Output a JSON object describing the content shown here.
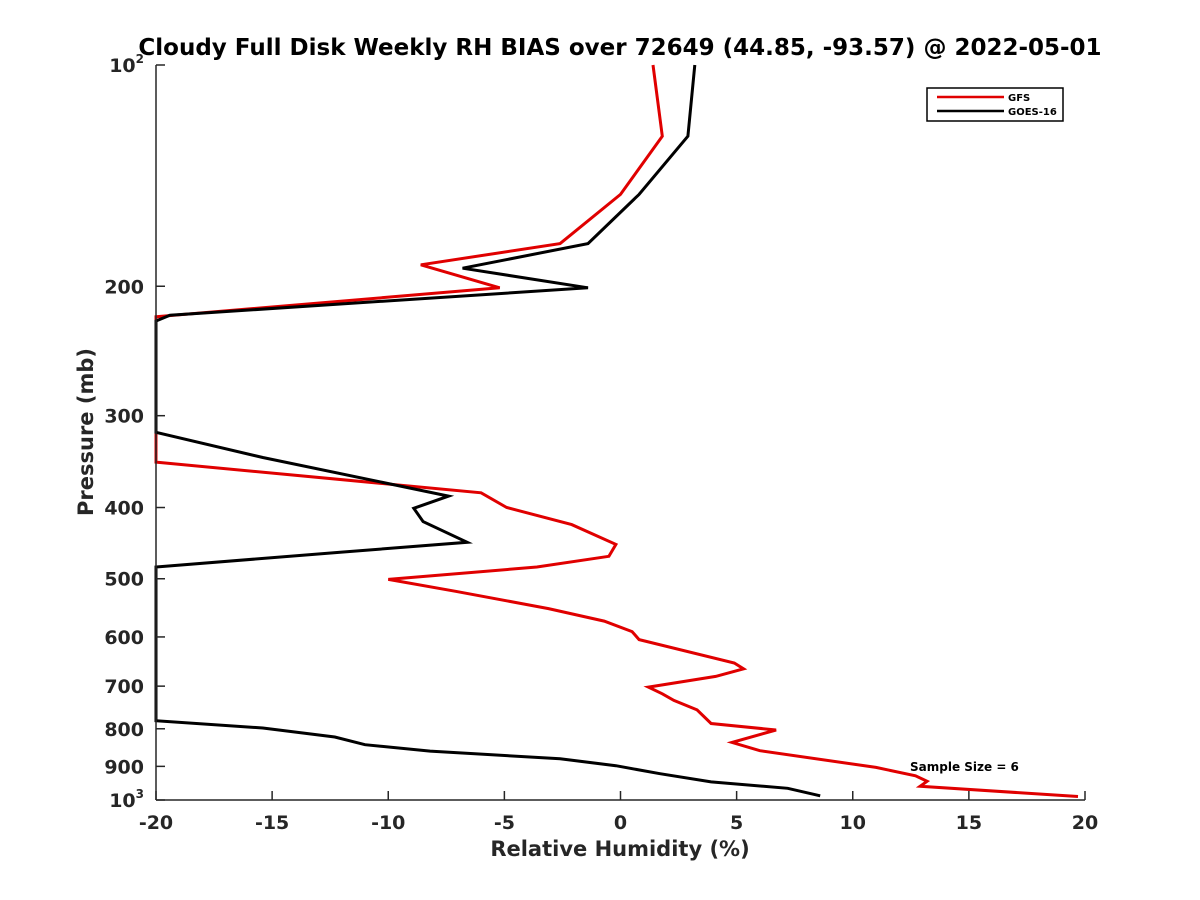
{
  "chart_data": {
    "type": "line",
    "title": "Cloudy Full Disk Weekly RH BIAS over 72649 (44.85, -93.57) @ 2022-05-01",
    "xlabel": "Relative Humidity (%)",
    "ylabel": "Pressure (mb)",
    "xlim": [
      -20,
      20
    ],
    "ylim": [
      100,
      1000
    ],
    "y_scale": "log",
    "y_reversed": true,
    "x_ticks": [
      -20,
      -15,
      -10,
      -5,
      0,
      5,
      10,
      15,
      20
    ],
    "x_tick_labels": [
      "-20",
      "-15",
      "-10",
      "-5",
      "0",
      "5",
      "10",
      "15",
      "20"
    ],
    "y_ticks": [
      100,
      200,
      300,
      400,
      500,
      600,
      700,
      800,
      900,
      1000
    ],
    "y_tick_labels": [
      "10^2",
      "200",
      "300",
      "400",
      "500",
      "600",
      "700",
      "800",
      "900",
      "10^3"
    ],
    "grid": false,
    "legend_position": "top-right",
    "annotation": "Sample Size = 6",
    "series": [
      {
        "name": "GFS",
        "color": "#e00000",
        "points": [
          [
            1.4,
            100
          ],
          [
            1.8,
            125
          ],
          [
            0.0,
            150
          ],
          [
            -2.6,
            175
          ],
          [
            -8.6,
            187
          ],
          [
            -5.2,
            201
          ],
          [
            -20.0,
            220
          ],
          [
            -20.0,
            347
          ],
          [
            -6.0,
            382
          ],
          [
            -4.9,
            400
          ],
          [
            -2.1,
            422
          ],
          [
            -0.2,
            449
          ],
          [
            -0.5,
            466
          ],
          [
            -3.6,
            482
          ],
          [
            -10.0,
            501
          ],
          [
            -7.1,
            520
          ],
          [
            -3.1,
            549
          ],
          [
            -0.7,
            571
          ],
          [
            0.5,
            590
          ],
          [
            0.8,
            605
          ],
          [
            4.9,
            651
          ],
          [
            5.3,
            663
          ],
          [
            4.1,
            679
          ],
          [
            1.2,
            702
          ],
          [
            1.8,
            717
          ],
          [
            2.3,
            732
          ],
          [
            3.3,
            754
          ],
          [
            3.9,
            787
          ],
          [
            6.7,
            803
          ],
          [
            4.8,
            835
          ],
          [
            6.0,
            857
          ],
          [
            11.0,
            903
          ],
          [
            12.7,
            927
          ],
          [
            13.2,
            943
          ],
          [
            12.9,
            958
          ],
          [
            19.7,
            989
          ]
        ]
      },
      {
        "name": "GOES-16",
        "color": "#000000",
        "points": [
          [
            3.2,
            100
          ],
          [
            2.9,
            125
          ],
          [
            0.8,
            150
          ],
          [
            -1.4,
            175
          ],
          [
            -6.8,
            189
          ],
          [
            -1.4,
            201
          ],
          [
            -19.4,
            219
          ],
          [
            -20.0,
            223
          ],
          [
            -20.0,
            316
          ],
          [
            -15.4,
            342
          ],
          [
            -7.4,
            386
          ],
          [
            -8.9,
            401
          ],
          [
            -8.5,
            418
          ],
          [
            -6.6,
            446
          ],
          [
            -12.0,
            460
          ],
          [
            -20.0,
            482
          ],
          [
            -20.0,
            780
          ],
          [
            -15.4,
            798
          ],
          [
            -12.3,
            821
          ],
          [
            -11.0,
            841
          ],
          [
            -8.2,
            858
          ],
          [
            -2.6,
            879
          ],
          [
            -0.2,
            898
          ],
          [
            1.7,
            921
          ],
          [
            3.9,
            945
          ],
          [
            7.2,
            964
          ],
          [
            8.6,
            987
          ]
        ]
      }
    ]
  }
}
